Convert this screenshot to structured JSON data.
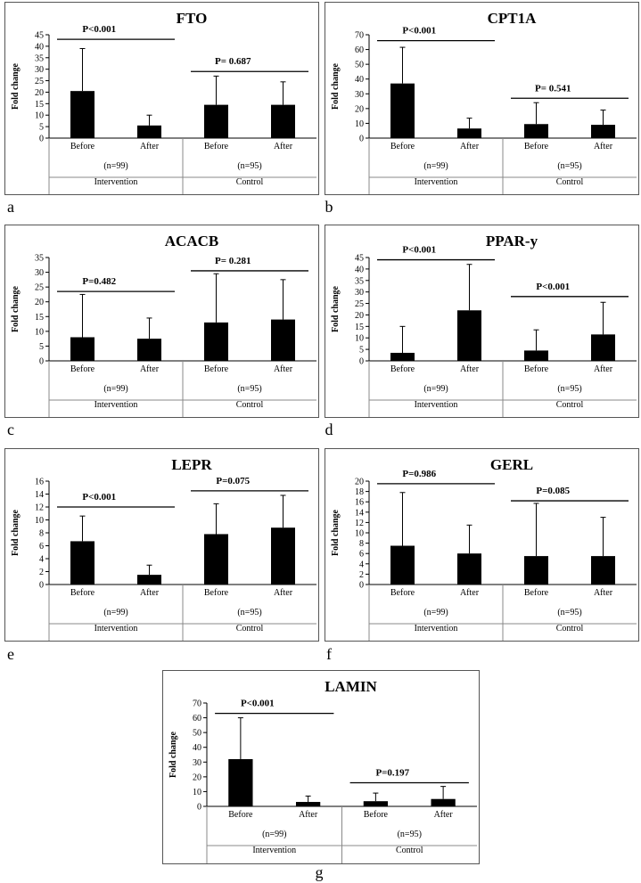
{
  "chart_data": [
    {
      "type": "bar",
      "panel_letter": "a",
      "title": "FTO",
      "ylabel": "Fold change",
      "ylim": [
        0,
        45
      ],
      "yticks": [
        0,
        5,
        10,
        15,
        20,
        25,
        30,
        35,
        40,
        45
      ],
      "categories": [
        "Before",
        "After",
        "Before",
        "After"
      ],
      "values": [
        20.5,
        5.5,
        14.5,
        14.5
      ],
      "error_upper": [
        39,
        10,
        27,
        24.5
      ],
      "groups": [
        {
          "n_label": "(n=99)",
          "name": "Intervention",
          "p_label": "P<0.001",
          "p_level": 43
        },
        {
          "n_label": "(n=95)",
          "name": "Control",
          "p_label": "P= 0.687",
          "p_level": 29
        }
      ],
      "color": "#000000"
    },
    {
      "type": "bar",
      "panel_letter": "b",
      "title": "CPT1A",
      "ylabel": "Fold change",
      "ylim": [
        0,
        70
      ],
      "yticks": [
        0,
        10,
        20,
        30,
        40,
        50,
        60,
        70
      ],
      "categories": [
        "Before",
        "After",
        "Before",
        "After"
      ],
      "values": [
        37,
        6.5,
        9.5,
        9
      ],
      "error_upper": [
        61.5,
        13.5,
        24,
        19
      ],
      "groups": [
        {
          "n_label": "(n=99)",
          "name": "Intervention",
          "p_label": "P<0.001",
          "p_level": 66
        },
        {
          "n_label": "(n=95)",
          "name": "Control",
          "p_label": "P= 0.541",
          "p_level": 27
        }
      ],
      "color": "#000000"
    },
    {
      "type": "bar",
      "panel_letter": "c",
      "title": "ACACB",
      "ylabel": "Fold change",
      "ylim": [
        0,
        35
      ],
      "yticks": [
        0,
        5,
        10,
        15,
        20,
        25,
        30,
        35
      ],
      "categories": [
        "Before",
        "After",
        "Before",
        "After"
      ],
      "values": [
        8,
        7.5,
        13,
        14
      ],
      "error_upper": [
        22.5,
        14.5,
        29.5,
        27.5
      ],
      "groups": [
        {
          "n_label": "(n=99)",
          "name": "Intervention",
          "p_label": "P=0.482",
          "p_level": 23.5
        },
        {
          "n_label": "(n=95)",
          "name": "Control",
          "p_label": "P= 0.281",
          "p_level": 30.5
        }
      ],
      "color": "#000000"
    },
    {
      "type": "bar",
      "panel_letter": "d",
      "title": "PPAR-y",
      "ylabel": "Fold change",
      "ylim": [
        0,
        45
      ],
      "yticks": [
        0,
        5,
        10,
        15,
        20,
        25,
        30,
        35,
        40,
        45
      ],
      "categories": [
        "Before",
        "After",
        "Before",
        "After"
      ],
      "values": [
        3.5,
        22,
        4.5,
        11.5
      ],
      "error_upper": [
        15,
        42,
        13.5,
        25.5
      ],
      "groups": [
        {
          "n_label": "(n=99)",
          "name": "Intervention",
          "p_label": "P<0.001",
          "p_level": 44
        },
        {
          "n_label": "(n=95)",
          "name": "Control",
          "p_label": "P<0.001",
          "p_level": 28
        }
      ],
      "color": "#000000"
    },
    {
      "type": "bar",
      "panel_letter": "e",
      "title": "LEPR",
      "ylabel": "Fold change",
      "ylim": [
        0,
        16
      ],
      "yticks": [
        0,
        2,
        4,
        6,
        8,
        10,
        12,
        14,
        16
      ],
      "categories": [
        "Before",
        "After",
        "Before",
        "After"
      ],
      "values": [
        6.7,
        1.5,
        7.8,
        8.8
      ],
      "error_upper": [
        10.6,
        3,
        12.5,
        13.8
      ],
      "groups": [
        {
          "n_label": "(n=99)",
          "name": "Intervention",
          "p_label": "P<0.001",
          "p_level": 12
        },
        {
          "n_label": "(n=95)",
          "name": "Control",
          "p_label": "P=0.075",
          "p_level": 14.5
        }
      ],
      "color": "#000000"
    },
    {
      "type": "bar",
      "panel_letter": "f",
      "title": "GERL",
      "ylabel": "Fold change",
      "ylim": [
        0,
        20
      ],
      "yticks": [
        0,
        2,
        4,
        6,
        8,
        10,
        12,
        14,
        16,
        18,
        20
      ],
      "categories": [
        "Before",
        "After",
        "Before",
        "After"
      ],
      "values": [
        7.5,
        6,
        5.5,
        5.5
      ],
      "error_upper": [
        17.8,
        11.5,
        15.7,
        13
      ],
      "groups": [
        {
          "n_label": "(n=99)",
          "name": "Intervention",
          "p_label": "P=0.986",
          "p_level": 19.5
        },
        {
          "n_label": "(n=95)",
          "name": "Control",
          "p_label": "P=0.085",
          "p_level": 16.2
        }
      ],
      "color": "#000000"
    },
    {
      "type": "bar",
      "panel_letter": "g",
      "title": "LAMIN",
      "ylabel": "Fold change",
      "ylim": [
        0,
        70
      ],
      "yticks": [
        0,
        10,
        20,
        30,
        40,
        50,
        60,
        70
      ],
      "categories": [
        "Before",
        "After",
        "Before",
        "After"
      ],
      "values": [
        32,
        3,
        3.5,
        5
      ],
      "error_upper": [
        60,
        7,
        9,
        13.5
      ],
      "groups": [
        {
          "n_label": "(n=99)",
          "name": "Intervention",
          "p_label": "P<0.001",
          "p_level": 63
        },
        {
          "n_label": "(n=95)",
          "name": "Control",
          "p_label": "P=0.197",
          "p_level": 16
        }
      ],
      "color": "#000000"
    }
  ]
}
